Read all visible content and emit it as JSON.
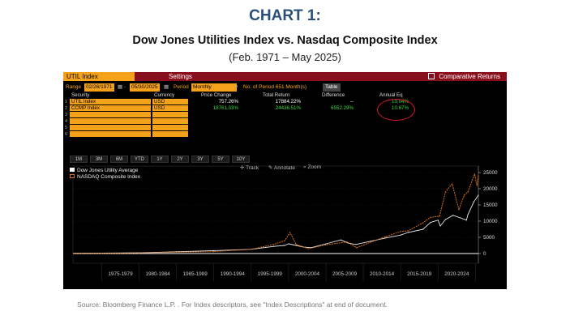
{
  "header": {
    "title": "CHART 1:",
    "subtitle": "Dow Jones Utilities Index vs. Nasdaq Composite Index",
    "range": "(Feb. 1971 – May 2025)"
  },
  "terminal": {
    "tab_label": "UTIL Index",
    "settings_label": "Settings",
    "comparative_label": "Comparative Returns",
    "params": {
      "range_label": "Range",
      "start_date": "02/26/1971",
      "end_date": "05/30/2025",
      "period_label": "Period",
      "period_value": "Monthly",
      "num_periods": "No. of Period 651 Month(s)",
      "table_button": "Table"
    },
    "headers": [
      "Security",
      "Currency",
      "Price Change",
      "Total Return",
      "Difference",
      "Annual Eq"
    ],
    "rows": [
      {
        "num": "1",
        "security": "UTIL Index",
        "currency": "USD",
        "price_change": "757.26%",
        "total_return": "17884.22%",
        "difference": "--",
        "annual_eq": "10.04%"
      },
      {
        "num": "2",
        "security": "CCMP Index",
        "currency": "USD",
        "price_change": "18761.03%",
        "total_return": "24436.51%",
        "difference": "6552.29%",
        "annual_eq": "10.67%"
      }
    ],
    "empty_row_nums": [
      "3",
      "4",
      "5",
      "6"
    ],
    "periods": [
      "1M",
      "3M",
      "6M",
      "YTD",
      "1Y",
      "2Y",
      "3Y",
      "5Y",
      "10Y"
    ],
    "tools": {
      "track": "Track",
      "annotate": "Annotate",
      "zoom": "Zoom"
    }
  },
  "chart_data": {
    "type": "line",
    "title": "",
    "xlabel": "",
    "ylabel": "",
    "ylim": [
      -3000,
      27000
    ],
    "yticks": [
      0,
      5000,
      10000,
      15000,
      20000,
      25000
    ],
    "xcategories": [
      "1975-1979",
      "1980-1984",
      "1985-1989",
      "1990-1994",
      "1995-1999",
      "2000-2004",
      "2005-2009",
      "2010-2014",
      "2015-2019",
      "2020-2024"
    ],
    "xlim": [
      1971.15,
      2025.4
    ],
    "legend_position": "top-left",
    "series": [
      {
        "name": "Dow Jones Utility Average",
        "color": "#e8e8e8",
        "x": [
          1971.2,
          1975,
          1980,
          1985,
          1990,
          1995,
          1998,
          1999.5,
          2000,
          2002,
          2003,
          2005,
          2007,
          2008,
          2009,
          2011,
          2013,
          2015,
          2016,
          2018,
          2019,
          2020,
          2020.3,
          2021,
          2022,
          2023,
          2023.8,
          2024,
          2024.8,
          2025.4
        ],
        "y": [
          100,
          120,
          220,
          550,
          900,
          1300,
          2200,
          2500,
          3000,
          2000,
          1800,
          3000,
          4200,
          3200,
          2800,
          3800,
          4800,
          5700,
          6500,
          7500,
          9600,
          10300,
          8500,
          10500,
          11800,
          11000,
          10300,
          12000,
          16000,
          18000
        ]
      },
      {
        "name": "NASDAQ Composite Index",
        "color": "#d9701f",
        "x": [
          1971.2,
          1975,
          1980,
          1985,
          1990,
          1995,
          1998,
          1999.5,
          2000.2,
          2001,
          2002.7,
          2005,
          2007.8,
          2009.1,
          2011,
          2013,
          2015,
          2016,
          2018,
          2019,
          2020.2,
          2021,
          2021.9,
          2022.8,
          2023.5,
          2024,
          2024.9,
          2025.2,
          2025.4
        ],
        "y": [
          100,
          80,
          200,
          400,
          600,
          1300,
          2800,
          4000,
          6500,
          2800,
          1500,
          2700,
          3600,
          1800,
          3500,
          5200,
          6800,
          7000,
          9500,
          11200,
          11500,
          19000,
          21500,
          13500,
          18000,
          19000,
          24500,
          21000,
          24000
        ]
      }
    ]
  },
  "footer": {
    "source": "Source: Bloomberg Finance L.P. . For Index descriptors, see \"Index Descriptions\" at end of document."
  }
}
